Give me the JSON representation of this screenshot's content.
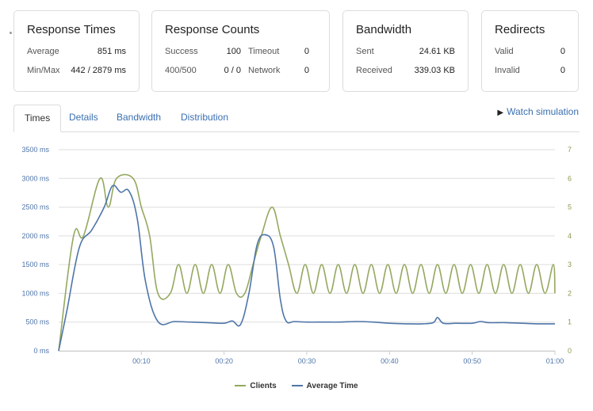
{
  "cards": {
    "times": {
      "title": "Response Times",
      "average_label": "Average",
      "average_value": "851 ms",
      "minmax_label": "Min/Max",
      "minmax_value": "442 / 2879 ms"
    },
    "counts": {
      "title": "Response Counts",
      "success_label": "Success",
      "success_value": "100",
      "timeout_label": "Timeout",
      "timeout_value": "0",
      "status_label": "400/500",
      "status_value": "0 / 0",
      "network_label": "Network",
      "network_value": "0"
    },
    "bandwidth": {
      "title": "Bandwidth",
      "sent_label": "Sent",
      "sent_value": "24.61 KB",
      "received_label": "Received",
      "received_value": "339.03 KB"
    },
    "redirects": {
      "title": "Redirects",
      "valid_label": "Valid",
      "valid_value": "0",
      "invalid_label": "Invalid",
      "invalid_value": "0"
    }
  },
  "tabs": [
    {
      "label": "Times",
      "active": true
    },
    {
      "label": "Details",
      "active": false
    },
    {
      "label": "Bandwidth",
      "active": false
    },
    {
      "label": "Distribution",
      "active": false
    }
  ],
  "watch_simulation": "Watch simulation",
  "colors": {
    "clients": "#94a85f",
    "average_time": "#4f75a8",
    "grid": "#dddddd",
    "axis_text": "#4f75a8",
    "right_axis_text": "#8b9a4e",
    "link": "#3a6fb0"
  },
  "chart_data": {
    "type": "line",
    "title": "",
    "xlabel": "",
    "ylabel": "",
    "xlim": [
      0,
      60
    ],
    "ylim": [
      0,
      3500
    ],
    "y2lim": [
      0,
      7
    ],
    "y_ticks": [
      "0 ms",
      "500 ms",
      "1000 ms",
      "1500 ms",
      "2000 ms",
      "2500 ms",
      "3000 ms",
      "3500 ms"
    ],
    "y_tick_values": [
      0,
      500,
      1000,
      1500,
      2000,
      2500,
      3000,
      3500
    ],
    "y2_ticks": [
      "0",
      "1",
      "2",
      "3",
      "4",
      "5",
      "6",
      "7"
    ],
    "y2_tick_values": [
      0,
      1,
      2,
      3,
      4,
      5,
      6,
      7
    ],
    "x_ticks": [
      "00:10",
      "00:20",
      "00:30",
      "00:40",
      "00:50",
      "01:00"
    ],
    "x_tick_values": [
      10,
      20,
      30,
      40,
      50,
      60
    ],
    "legend": [
      "Clients",
      "Average Time"
    ],
    "series": [
      {
        "name": "Clients",
        "axis": "right",
        "x": [
          0,
          1.8,
          3.0,
          5.0,
          6.0,
          7.0,
          9.0,
          10.0,
          11.0,
          12.0,
          13.5,
          14.5,
          15.5,
          16.5,
          17.5,
          18.5,
          19.5,
          20.5,
          21.5,
          22.5,
          23.5,
          24.5,
          25.8,
          26.8,
          27.8,
          28.8,
          29.8,
          30.8,
          31.8,
          32.8,
          33.8,
          34.8,
          35.8,
          36.8,
          37.8,
          38.8,
          39.8,
          40.8,
          41.8,
          42.8,
          43.8,
          44.8,
          45.8,
          46.8,
          47.8,
          48.8,
          49.8,
          50.8,
          51.8,
          52.8,
          53.8,
          54.8,
          55.8,
          56.8,
          57.8,
          58.8,
          59.8,
          60.0
        ],
        "y": [
          0,
          4,
          4,
          6,
          5,
          6,
          6,
          5,
          4,
          2,
          2,
          3,
          2,
          3,
          2,
          3,
          2,
          3,
          2,
          2,
          3,
          4,
          5,
          4,
          3,
          2,
          3,
          2,
          3,
          2,
          3,
          2,
          3,
          2,
          3,
          2,
          3,
          2,
          3,
          2,
          3,
          2,
          3,
          2,
          3,
          2,
          3,
          2,
          3,
          2,
          3,
          2,
          3,
          2,
          3,
          2,
          3,
          2
        ]
      },
      {
        "name": "Average Time",
        "axis": "left",
        "x": [
          0,
          1.0,
          2.5,
          4.0,
          5.5,
          6.5,
          7.5,
          8.5,
          9.5,
          10.5,
          12.0,
          14.0,
          16.0,
          18.0,
          20.0,
          21.0,
          22.0,
          23.0,
          24.0,
          25.0,
          26.0,
          26.8,
          27.5,
          28.5,
          30.0,
          32.0,
          34.0,
          36.0,
          38.0,
          40.0,
          42.0,
          44.0,
          45.3,
          45.8,
          46.5,
          48.0,
          50.0,
          51.0,
          52.0,
          54.0,
          56.0,
          58.0,
          60.0
        ],
        "y": [
          0,
          700,
          1800,
          2100,
          2500,
          2870,
          2760,
          2780,
          2300,
          1200,
          510,
          510,
          500,
          490,
          480,
          520,
          460,
          1000,
          1850,
          2020,
          1800,
          900,
          520,
          510,
          500,
          500,
          500,
          510,
          500,
          480,
          470,
          470,
          490,
          580,
          480,
          480,
          480,
          510,
          490,
          490,
          480,
          470,
          470
        ]
      }
    ]
  }
}
